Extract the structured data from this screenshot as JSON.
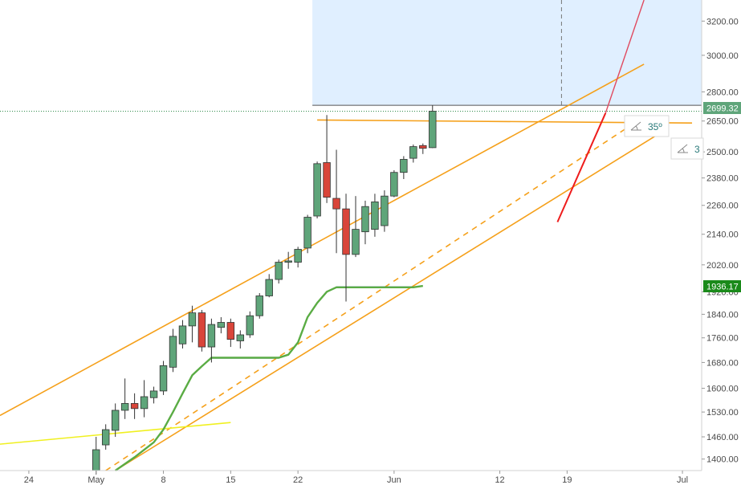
{
  "chart_data": {
    "type": "candlestick",
    "y_axis": {
      "scale": "log",
      "range": [
        1370,
        3330
      ],
      "ticks": [
        "1400.00",
        "1460.00",
        "1530.00",
        "1600.00",
        "1680.00",
        "1760.00",
        "1840.00",
        "1920.00",
        "2020.00",
        "2140.00",
        "2260.00",
        "2380.00",
        "2500.00",
        "2650.00",
        "2800.00",
        "3000.00",
        "3200.00"
      ]
    },
    "x_axis": {
      "start": "2019-04-21",
      "end": "2019-07-03",
      "ticks": [
        {
          "date": "2019-04-24",
          "label": "24"
        },
        {
          "date": "2019-05-01",
          "label": "May"
        },
        {
          "date": "2019-05-08",
          "label": "8"
        },
        {
          "date": "2019-05-15",
          "label": "15"
        },
        {
          "date": "2019-05-22",
          "label": "22"
        },
        {
          "date": "2019-06-01",
          "label": "Jun"
        },
        {
          "date": "2019-06-12",
          "label": "12"
        },
        {
          "date": "2019-06-19",
          "label": "19"
        },
        {
          "date": "2019-07-01",
          "label": "Jul"
        }
      ]
    },
    "candles": [
      {
        "date": "2019-05-01",
        "o": 1370,
        "h": 1460,
        "l": 1360,
        "c": 1425
      },
      {
        "date": "2019-05-02",
        "o": 1438,
        "h": 1495,
        "l": 1425,
        "c": 1480
      },
      {
        "date": "2019-05-03",
        "o": 1478,
        "h": 1555,
        "l": 1460,
        "c": 1535
      },
      {
        "date": "2019-05-04",
        "o": 1535,
        "h": 1630,
        "l": 1510,
        "c": 1555
      },
      {
        "date": "2019-05-05",
        "o": 1555,
        "h": 1585,
        "l": 1510,
        "c": 1540
      },
      {
        "date": "2019-05-06",
        "o": 1540,
        "h": 1625,
        "l": 1515,
        "c": 1575
      },
      {
        "date": "2019-05-07",
        "o": 1572,
        "h": 1605,
        "l": 1555,
        "c": 1592
      },
      {
        "date": "2019-05-08",
        "o": 1592,
        "h": 1685,
        "l": 1580,
        "c": 1670
      },
      {
        "date": "2019-05-09",
        "o": 1665,
        "h": 1790,
        "l": 1650,
        "c": 1765
      },
      {
        "date": "2019-05-10",
        "o": 1740,
        "h": 1820,
        "l": 1725,
        "c": 1800
      },
      {
        "date": "2019-05-11",
        "o": 1800,
        "h": 1870,
        "l": 1745,
        "c": 1845
      },
      {
        "date": "2019-05-12",
        "o": 1845,
        "h": 1855,
        "l": 1715,
        "c": 1730
      },
      {
        "date": "2019-05-13",
        "o": 1730,
        "h": 1825,
        "l": 1680,
        "c": 1805
      },
      {
        "date": "2019-05-14",
        "o": 1795,
        "h": 1830,
        "l": 1775,
        "c": 1812
      },
      {
        "date": "2019-05-15",
        "o": 1812,
        "h": 1825,
        "l": 1730,
        "c": 1755
      },
      {
        "date": "2019-05-16",
        "o": 1750,
        "h": 1785,
        "l": 1725,
        "c": 1770
      },
      {
        "date": "2019-05-17",
        "o": 1770,
        "h": 1850,
        "l": 1760,
        "c": 1835
      },
      {
        "date": "2019-05-18",
        "o": 1835,
        "h": 1915,
        "l": 1825,
        "c": 1905
      },
      {
        "date": "2019-05-19",
        "o": 1905,
        "h": 1985,
        "l": 1900,
        "c": 1965
      },
      {
        "date": "2019-05-20",
        "o": 1965,
        "h": 2040,
        "l": 1950,
        "c": 2030
      },
      {
        "date": "2019-05-21",
        "o": 2030,
        "h": 2070,
        "l": 2005,
        "c": 2035
      },
      {
        "date": "2019-05-22",
        "o": 2030,
        "h": 2090,
        "l": 2010,
        "c": 2080
      },
      {
        "date": "2019-05-23",
        "o": 2085,
        "h": 2220,
        "l": 2065,
        "c": 2210
      },
      {
        "date": "2019-05-24",
        "o": 2215,
        "h": 2455,
        "l": 2205,
        "c": 2445
      },
      {
        "date": "2019-05-25",
        "o": 2450,
        "h": 2680,
        "l": 2270,
        "c": 2295
      },
      {
        "date": "2019-05-26",
        "o": 2290,
        "h": 2510,
        "l": 2065,
        "c": 2245
      },
      {
        "date": "2019-05-27",
        "o": 2245,
        "h": 2310,
        "l": 1885,
        "c": 2060
      },
      {
        "date": "2019-05-28",
        "o": 2060,
        "h": 2300,
        "l": 2050,
        "c": 2160
      },
      {
        "date": "2019-05-29",
        "o": 2150,
        "h": 2280,
        "l": 2100,
        "c": 2255
      },
      {
        "date": "2019-05-30",
        "o": 2160,
        "h": 2310,
        "l": 2130,
        "c": 2275
      },
      {
        "date": "2019-05-31",
        "o": 2175,
        "h": 2325,
        "l": 2150,
        "c": 2300
      },
      {
        "date": "2019-06-01",
        "o": 2300,
        "h": 2415,
        "l": 2295,
        "c": 2405
      },
      {
        "date": "2019-06-02",
        "o": 2405,
        "h": 2480,
        "l": 2375,
        "c": 2465
      },
      {
        "date": "2019-06-03",
        "o": 2470,
        "h": 2535,
        "l": 2450,
        "c": 2525
      },
      {
        "date": "2019-06-04",
        "o": 2530,
        "h": 2540,
        "l": 2490,
        "c": 2517
      },
      {
        "date": "2019-06-05",
        "o": 2520,
        "h": 2730,
        "l": 2518,
        "c": 2699.32
      }
    ],
    "last_price": "2699.32",
    "marked_level": "1936.17",
    "angle_labels": [
      "35º",
      "3"
    ],
    "colors": {
      "up": "#5fa57a",
      "down": "#d9453a",
      "channel": "#f5a01a",
      "ma": "#5aac44",
      "level": "#5a5ae0",
      "steep": "#ee1c1c",
      "yellow": "#f0f020",
      "target_zone": "#e0efff"
    }
  }
}
